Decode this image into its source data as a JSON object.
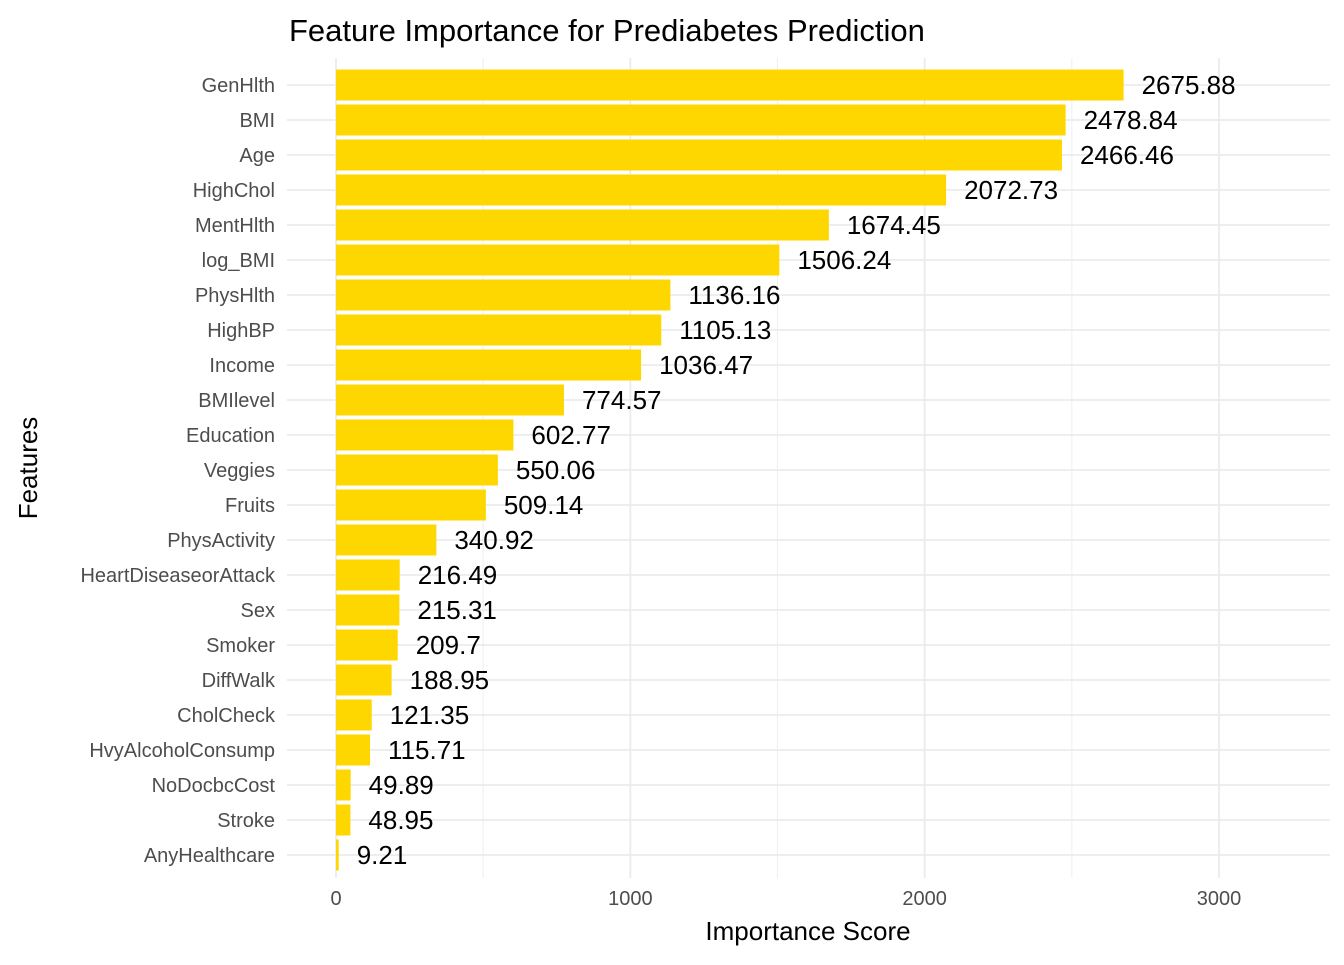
{
  "chart_data": {
    "type": "bar",
    "orientation": "horizontal",
    "title": "Feature Importance for Prediabetes Prediction",
    "xlabel": "Importance Score",
    "ylabel": "Features",
    "xlim": [
      -110,
      3330
    ],
    "xticks": [
      0,
      1000,
      2000,
      3000
    ],
    "xtick_labels": [
      "0",
      "1000",
      "2000",
      "3000"
    ],
    "grid": true,
    "legend": "none",
    "bar_color": "#FFD700",
    "categories": [
      "GenHlth",
      "BMI",
      "Age",
      "HighChol",
      "MentHlth",
      "log_BMI",
      "PhysHlth",
      "HighBP",
      "Income",
      "BMIlevel",
      "Education",
      "Veggies",
      "Fruits",
      "PhysActivity",
      "HeartDiseaseorAttack",
      "Sex",
      "Smoker",
      "DiffWalk",
      "CholCheck",
      "HvyAlcoholConsump",
      "NoDocbcCost",
      "Stroke",
      "AnyHealthcare"
    ],
    "values": [
      2675.88,
      2478.84,
      2466.46,
      2072.73,
      1674.45,
      1506.24,
      1136.16,
      1105.13,
      1036.47,
      774.57,
      602.77,
      550.06,
      509.14,
      340.92,
      216.49,
      215.31,
      209.7,
      188.95,
      121.35,
      115.71,
      49.89,
      48.95,
      9.21
    ],
    "value_labels": [
      "2675.88",
      "2478.84",
      "2466.46",
      "2072.73",
      "1674.45",
      "1506.24",
      "1136.16",
      "1105.13",
      "1036.47",
      "774.57",
      "602.77",
      "550.06",
      "509.14",
      "340.92",
      "216.49",
      "215.31",
      "209.7",
      "188.95",
      "121.35",
      "115.71",
      "49.89",
      "48.95",
      "9.21"
    ]
  }
}
